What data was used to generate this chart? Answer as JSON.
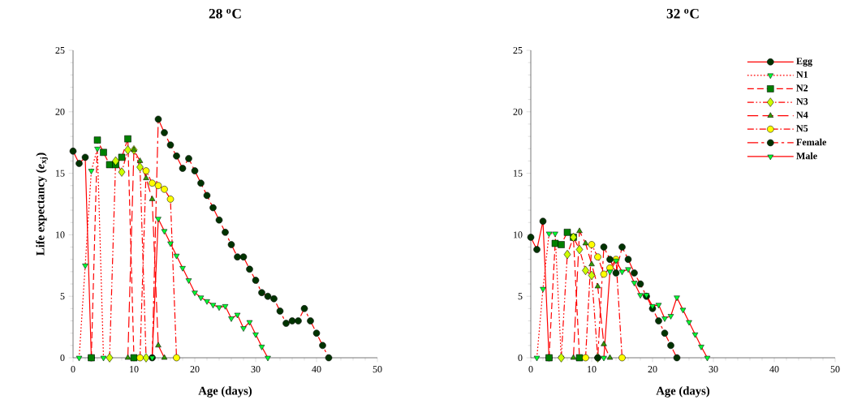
{
  "chart_data": [
    {
      "type": "line",
      "title": "28 $^{o}$C",
      "xlabel": "Age (days)",
      "ylabel": "Life expectancy (*e*$_{xj}$)",
      "xlim": [
        0,
        50
      ],
      "ylim": [
        0,
        25
      ],
      "xticks": [
        0,
        10,
        20,
        30,
        40,
        50
      ],
      "yticks": [
        0,
        5,
        10,
        15,
        20,
        25
      ],
      "series": [
        {
          "color": "#003300",
          "marker": "circle",
          "line_style": "solid",
          "x": [
            0,
            1,
            2,
            3
          ],
          "values": [
            16.8,
            15.8,
            16.3,
            0
          ]
        },
        {
          "color": "#00ff33",
          "marker": "triangle-down",
          "line_style": "dotted",
          "x": [
            1,
            2,
            3,
            4,
            5
          ],
          "values": [
            0,
            7.5,
            15.2,
            17.0,
            0
          ]
        },
        {
          "color": "#008000",
          "marker": "square",
          "line_style": "dashed",
          "x": [
            3,
            4,
            5,
            6,
            7,
            8,
            9,
            10
          ],
          "values": [
            0,
            17.7,
            16.7,
            15.7,
            15.7,
            16.3,
            17.8,
            0
          ]
        },
        {
          "color": "#ccff00",
          "marker": "diamond",
          "line_style": "dashdotdotted",
          "x": [
            6,
            7,
            8,
            9,
            10,
            11,
            12
          ],
          "values": [
            0,
            16.0,
            15.1,
            16.9,
            16.9,
            15.5,
            0
          ]
        },
        {
          "color": "#339900",
          "marker": "triangle",
          "line_style": "longdashed",
          "x": [
            9,
            10,
            11,
            12,
            13,
            14,
            15
          ],
          "values": [
            0,
            16.9,
            16.0,
            14.6,
            12.9,
            1.0,
            0
          ]
        },
        {
          "color": "#ffff00",
          "marker": "circle",
          "line_style": "dashdotted",
          "x": [
            11,
            12,
            13,
            14,
            15,
            16,
            17
          ],
          "values": [
            0,
            15.2,
            14.2,
            14.0,
            13.7,
            12.9,
            0
          ]
        },
        {
          "color": "#003300",
          "marker": "circle",
          "line_style": "longdashdotted",
          "x": [
            13,
            14,
            15,
            16,
            17,
            18,
            19,
            20,
            21,
            22,
            23,
            24,
            25,
            26,
            27,
            28,
            29,
            30,
            31,
            32,
            33,
            34,
            35,
            36,
            37,
            38,
            39,
            40,
            41,
            42
          ],
          "values": [
            0,
            19.4,
            18.3,
            17.3,
            16.4,
            15.4,
            16.2,
            15.2,
            14.2,
            13.2,
            12.2,
            11.2,
            10.2,
            9.2,
            8.2,
            8.2,
            7.2,
            6.3,
            5.3,
            5.0,
            4.8,
            3.8,
            2.8,
            3.0,
            3.0,
            4.0,
            3.0,
            2.0,
            1.0,
            0
          ]
        },
        {
          "color": "#00ff33",
          "marker": "triangle-down",
          "line_style": "solid",
          "x": [
            13,
            14,
            15,
            16,
            17,
            18,
            19,
            20,
            21,
            22,
            23,
            24,
            25,
            26,
            27,
            28,
            29,
            30,
            31,
            32
          ],
          "values": [
            0,
            11.3,
            10.3,
            9.3,
            8.3,
            7.3,
            6.3,
            5.3,
            4.9,
            4.6,
            4.3,
            4.1,
            4.2,
            3.2,
            3.5,
            2.4,
            2.9,
            1.9,
            0.9,
            0
          ]
        }
      ]
    },
    {
      "type": "line",
      "title": "32 $^{o}$C",
      "xlabel": "Age (days)",
      "xlim": [
        0,
        50
      ],
      "ylim": [
        0,
        25
      ],
      "xticks": [
        0,
        10,
        20,
        30,
        40,
        50
      ],
      "yticks": [
        0,
        5,
        10,
        15,
        20,
        25
      ],
      "legend": "top right",
      "series": [
        {
          "name": "Egg",
          "color": "#003300",
          "marker": "circle",
          "line_style": "solid",
          "x": [
            0,
            1,
            2,
            3
          ],
          "values": [
            9.8,
            8.8,
            11.1,
            0
          ]
        },
        {
          "name": "N1",
          "color": "#00ff33",
          "marker": "triangle-down",
          "line_style": "dotted",
          "x": [
            1,
            2,
            3,
            4,
            5
          ],
          "values": [
            0,
            5.6,
            10.1,
            10.1,
            0
          ]
        },
        {
          "name": "N2",
          "color": "#008000",
          "marker": "square",
          "line_style": "dashed",
          "x": [
            3,
            4,
            5,
            6,
            7,
            8
          ],
          "values": [
            0,
            9.3,
            9.2,
            10.2,
            9.8,
            0
          ]
        },
        {
          "name": "N3",
          "color": "#ccff00",
          "marker": "diamond",
          "line_style": "dashdotdotted",
          "x": [
            5,
            6,
            7,
            8,
            9,
            10,
            11
          ],
          "values": [
            0,
            8.4,
            9.8,
            8.8,
            7.1,
            6.7,
            0
          ]
        },
        {
          "name": "N4",
          "color": "#339900",
          "marker": "triangle",
          "line_style": "longdashed",
          "x": [
            7,
            8,
            9,
            10,
            11,
            12,
            13
          ],
          "values": [
            0,
            10.3,
            9.3,
            7.6,
            5.8,
            1.1,
            0
          ]
        },
        {
          "name": "N5",
          "color": "#ffff00",
          "marker": "circle",
          "line_style": "dashdotted",
          "x": [
            9,
            10,
            11,
            12,
            13,
            14,
            15
          ],
          "values": [
            0,
            9.2,
            8.2,
            6.8,
            7.3,
            8.0,
            0
          ]
        },
        {
          "name": "Female",
          "color": "#003300",
          "marker": "circle",
          "line_style": "longdashdotted",
          "x": [
            11,
            12,
            13,
            14,
            15,
            16,
            17,
            18,
            19,
            20,
            21,
            22,
            23,
            24
          ],
          "values": [
            0,
            9.0,
            8.0,
            6.9,
            9.0,
            8.0,
            6.9,
            6.0,
            5.0,
            4.0,
            3.0,
            2.0,
            1.0,
            0
          ]
        },
        {
          "name": "Male",
          "color": "#00ff33",
          "marker": "triangle-down",
          "line_style": "solid",
          "x": [
            12,
            13,
            14,
            15,
            16,
            17,
            18,
            19,
            20,
            21,
            22,
            23,
            24,
            25,
            26,
            27,
            28,
            29
          ],
          "values": [
            0,
            7.0,
            7.9,
            7.0,
            7.2,
            6.1,
            5.1,
            5.1,
            4.2,
            4.3,
            3.2,
            3.4,
            4.9,
            3.9,
            2.9,
            1.9,
            0.9,
            0
          ]
        }
      ]
    }
  ]
}
